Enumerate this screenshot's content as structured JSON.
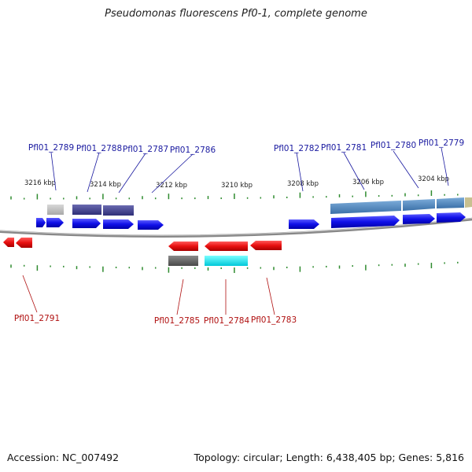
{
  "title": "Pseudomonas fluorescens Pf0-1, complete genome",
  "accession": "Accession: NC_007492",
  "summary": "Topology: circular; Length: 6,438,405 bp; Genes: 5,816",
  "colors": {
    "forward_gene": "#1010e8",
    "reverse_gene": "#e81010",
    "backbone": "#888888",
    "tick": "#2e8b2e",
    "forward_label": "#1a1aa0",
    "reverse_label": "#b01010"
  },
  "scale_labels": [
    "3216 kbp",
    "3214 kbp",
    "3212 kbp",
    "3210 kbp",
    "3208 kbp",
    "3206 kbp",
    "3204 kbp"
  ],
  "forward_gene_labels": [
    "Pfl01_2789",
    "Pfl01_2788",
    "Pfl01_2787",
    "Pfl01_2786",
    "Pfl01_2782",
    "Pfl01_2781",
    "Pfl01_2780",
    "Pfl01_2779"
  ],
  "reverse_gene_labels": [
    "Pfl01_2791",
    "Pfl01_2785",
    "Pfl01_2784",
    "Pfl01_2783"
  ]
}
